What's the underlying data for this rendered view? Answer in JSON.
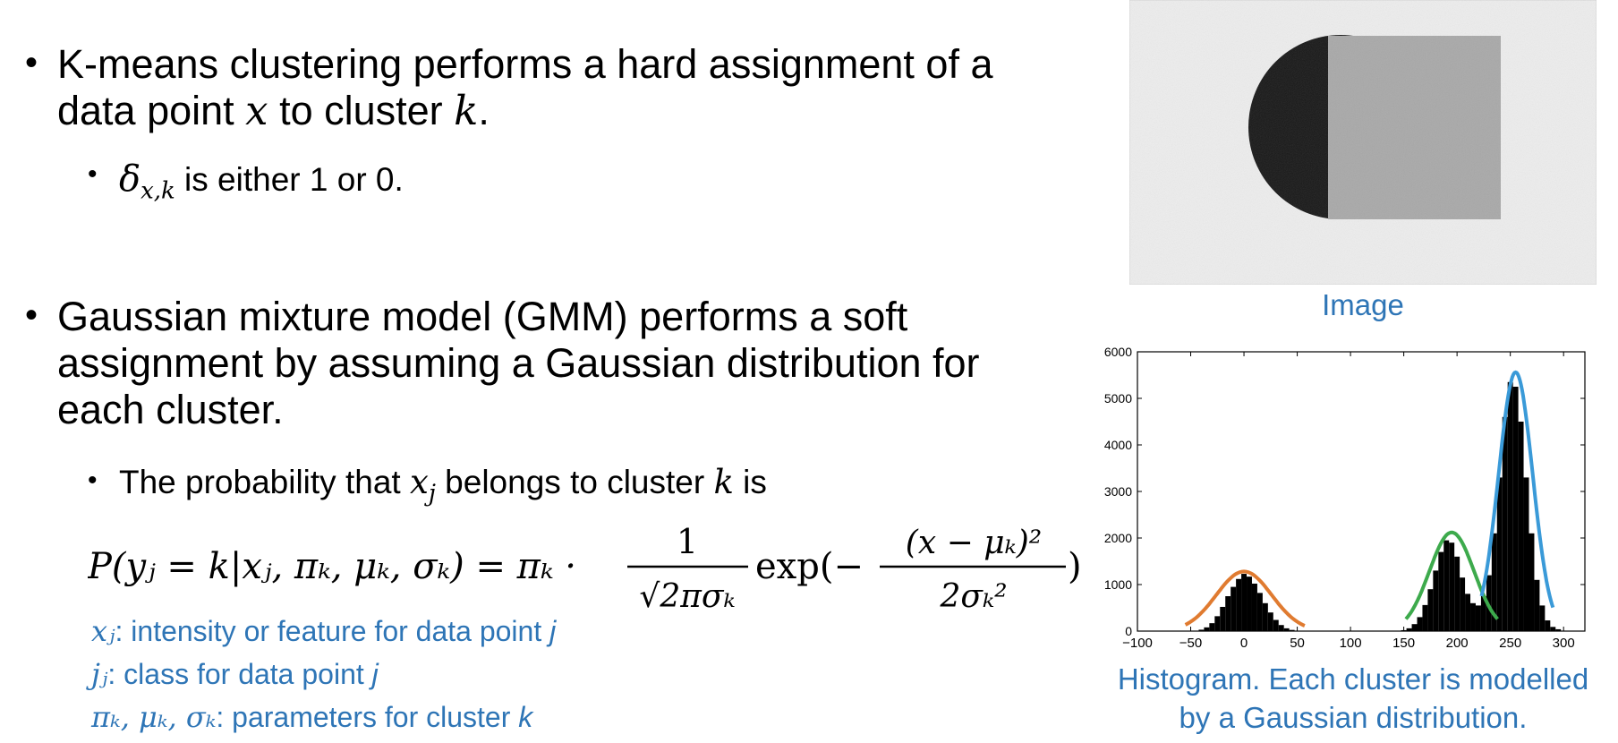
{
  "bullet1": {
    "text_a": "K-means clustering performs a hard assignment of a",
    "text_b1": "data point ",
    "var_x": "x",
    "text_b2": " to cluster ",
    "var_k": "k",
    "text_b3": ".",
    "sub_delta": "δ",
    "sub_delta_idx": "x,k",
    "sub_text": " is either 1 or 0."
  },
  "bullet2": {
    "line1": "Gaussian mixture model (GMM) performs a soft",
    "line2": "assignment by assuming a Gaussian distribution for",
    "line3": "each cluster.",
    "sub_text_a": "The probability that ",
    "sub_var": "x",
    "sub_var_idx": "j",
    "sub_text_b": " belongs to cluster ",
    "sub_var_k": "k",
    "sub_text_c": " is"
  },
  "formula": {
    "lhs": "P(yⱼ = k|xⱼ, πₖ, μₖ, σₖ) = πₖ ·",
    "frac1_num": "1",
    "frac1_den": "√2πσₖ",
    "exp": "exp(−",
    "frac2_num": "(x − μₖ)²",
    "frac2_den": "2σₖ²",
    "close": ")"
  },
  "legend": [
    {
      "sym": "xⱼ",
      "text": ": intensity or feature for data point ",
      "var": "j"
    },
    {
      "sym": "jⱼ",
      "text": ": class for data point ",
      "var": "j"
    },
    {
      "sym": "πₖ, μₖ, σₖ",
      "text": ": parameters for cluster ",
      "var": "k"
    }
  ],
  "image_caption": "Image",
  "histogram_caption_line1": "Histogram. Each cluster is modelled",
  "histogram_caption_line2": "by a Gaussian distribution.",
  "chart_data": {
    "type": "bar",
    "title": "",
    "xlabel": "",
    "ylabel": "",
    "xlim": [
      -100,
      320
    ],
    "ylim": [
      0,
      6000
    ],
    "xticks": [
      -100,
      -50,
      0,
      50,
      100,
      150,
      200,
      250,
      300
    ],
    "yticks": [
      0,
      1000,
      2000,
      3000,
      4000,
      5000,
      6000
    ],
    "bin_width": 5,
    "bins": [
      {
        "x": -40,
        "y": 30
      },
      {
        "x": -35,
        "y": 80
      },
      {
        "x": -30,
        "y": 170
      },
      {
        "x": -25,
        "y": 320
      },
      {
        "x": -20,
        "y": 520
      },
      {
        "x": -15,
        "y": 750
      },
      {
        "x": -10,
        "y": 950
      },
      {
        "x": -5,
        "y": 1120
      },
      {
        "x": 0,
        "y": 1230
      },
      {
        "x": 5,
        "y": 1170
      },
      {
        "x": 10,
        "y": 1020
      },
      {
        "x": 15,
        "y": 820
      },
      {
        "x": 20,
        "y": 600
      },
      {
        "x": 25,
        "y": 400
      },
      {
        "x": 30,
        "y": 240
      },
      {
        "x": 35,
        "y": 130
      },
      {
        "x": 40,
        "y": 60
      },
      {
        "x": 45,
        "y": 25
      },
      {
        "x": 150,
        "y": 20
      },
      {
        "x": 155,
        "y": 60
      },
      {
        "x": 160,
        "y": 150
      },
      {
        "x": 165,
        "y": 300
      },
      {
        "x": 170,
        "y": 560
      },
      {
        "x": 175,
        "y": 900
      },
      {
        "x": 180,
        "y": 1300
      },
      {
        "x": 185,
        "y": 1700
      },
      {
        "x": 190,
        "y": 1950
      },
      {
        "x": 195,
        "y": 1900
      },
      {
        "x": 200,
        "y": 1600
      },
      {
        "x": 205,
        "y": 1150
      },
      {
        "x": 210,
        "y": 800
      },
      {
        "x": 215,
        "y": 600
      },
      {
        "x": 220,
        "y": 550
      },
      {
        "x": 225,
        "y": 750
      },
      {
        "x": 230,
        "y": 1200
      },
      {
        "x": 235,
        "y": 2100
      },
      {
        "x": 240,
        "y": 3300
      },
      {
        "x": 245,
        "y": 4600
      },
      {
        "x": 250,
        "y": 5350
      },
      {
        "x": 255,
        "y": 5250
      },
      {
        "x": 260,
        "y": 4500
      },
      {
        "x": 265,
        "y": 3300
      },
      {
        "x": 270,
        "y": 2100
      },
      {
        "x": 275,
        "y": 1100
      },
      {
        "x": 280,
        "y": 550
      },
      {
        "x": 285,
        "y": 230
      },
      {
        "x": 290,
        "y": 90
      },
      {
        "x": 295,
        "y": 40
      }
    ],
    "gaussians": [
      {
        "name": "",
        "mu": 0,
        "sigma": 26,
        "peak": 1280,
        "color": "#e07b30",
        "range": [
          -55,
          57
        ]
      },
      {
        "name": "",
        "mu": 195,
        "sigma": 21,
        "peak": 2120,
        "color": "#3daa4c",
        "range": [
          152,
          238
        ]
      },
      {
        "name": "",
        "mu": 255,
        "sigma": 16,
        "peak": 5560,
        "color": "#3a9ad8",
        "range": [
          223,
          290
        ]
      }
    ]
  }
}
